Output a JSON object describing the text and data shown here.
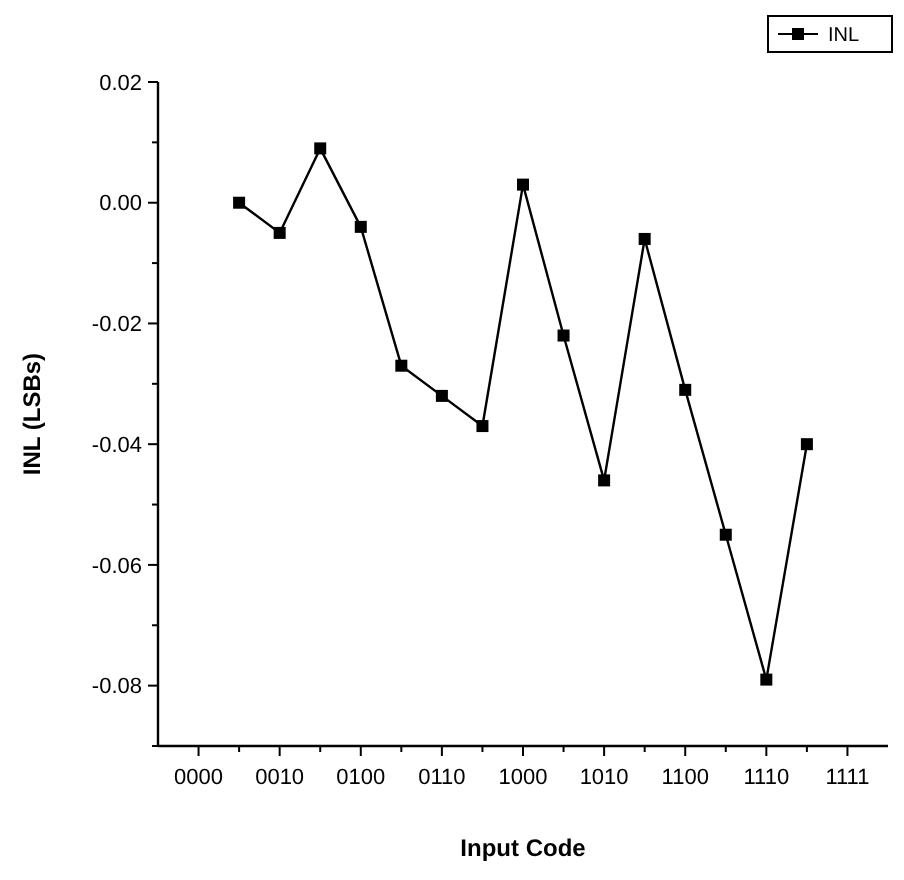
{
  "chart_data": {
    "type": "line",
    "xlabel": "Input Code",
    "ylabel": "INL (LSBs)",
    "categories": [
      "0000",
      null,
      "0010",
      null,
      "0100",
      null,
      "0110",
      null,
      "1000",
      null,
      "1010",
      null,
      "1100",
      null,
      "1110",
      null,
      "1111"
    ],
    "series": [
      {
        "name": "INL",
        "color": "#000000",
        "values": [
          null,
          0.0,
          -0.005,
          0.009,
          -0.004,
          -0.027,
          -0.032,
          -0.037,
          0.003,
          -0.022,
          -0.046,
          -0.006,
          -0.031,
          -0.055,
          -0.079,
          -0.04,
          null
        ]
      }
    ],
    "ylim": [
      -0.09,
      0.02
    ],
    "yticks": [
      {
        "value": -0.09,
        "label": null
      },
      {
        "value": -0.08,
        "label": "-0.08"
      },
      {
        "value": -0.07,
        "label": null
      },
      {
        "value": -0.06,
        "label": "-0.06"
      },
      {
        "value": -0.05,
        "label": null
      },
      {
        "value": -0.04,
        "label": "-0.04"
      },
      {
        "value": -0.03,
        "label": null
      },
      {
        "value": -0.02,
        "label": "-0.02"
      },
      {
        "value": -0.01,
        "label": null
      },
      {
        "value": 0,
        "label": "0.00"
      },
      {
        "value": 0.01,
        "label": null
      },
      {
        "value": 0.02,
        "label": "0.02"
      }
    ],
    "grid": false,
    "legend": "top right",
    "marker": "square",
    "line_style": "solid"
  }
}
